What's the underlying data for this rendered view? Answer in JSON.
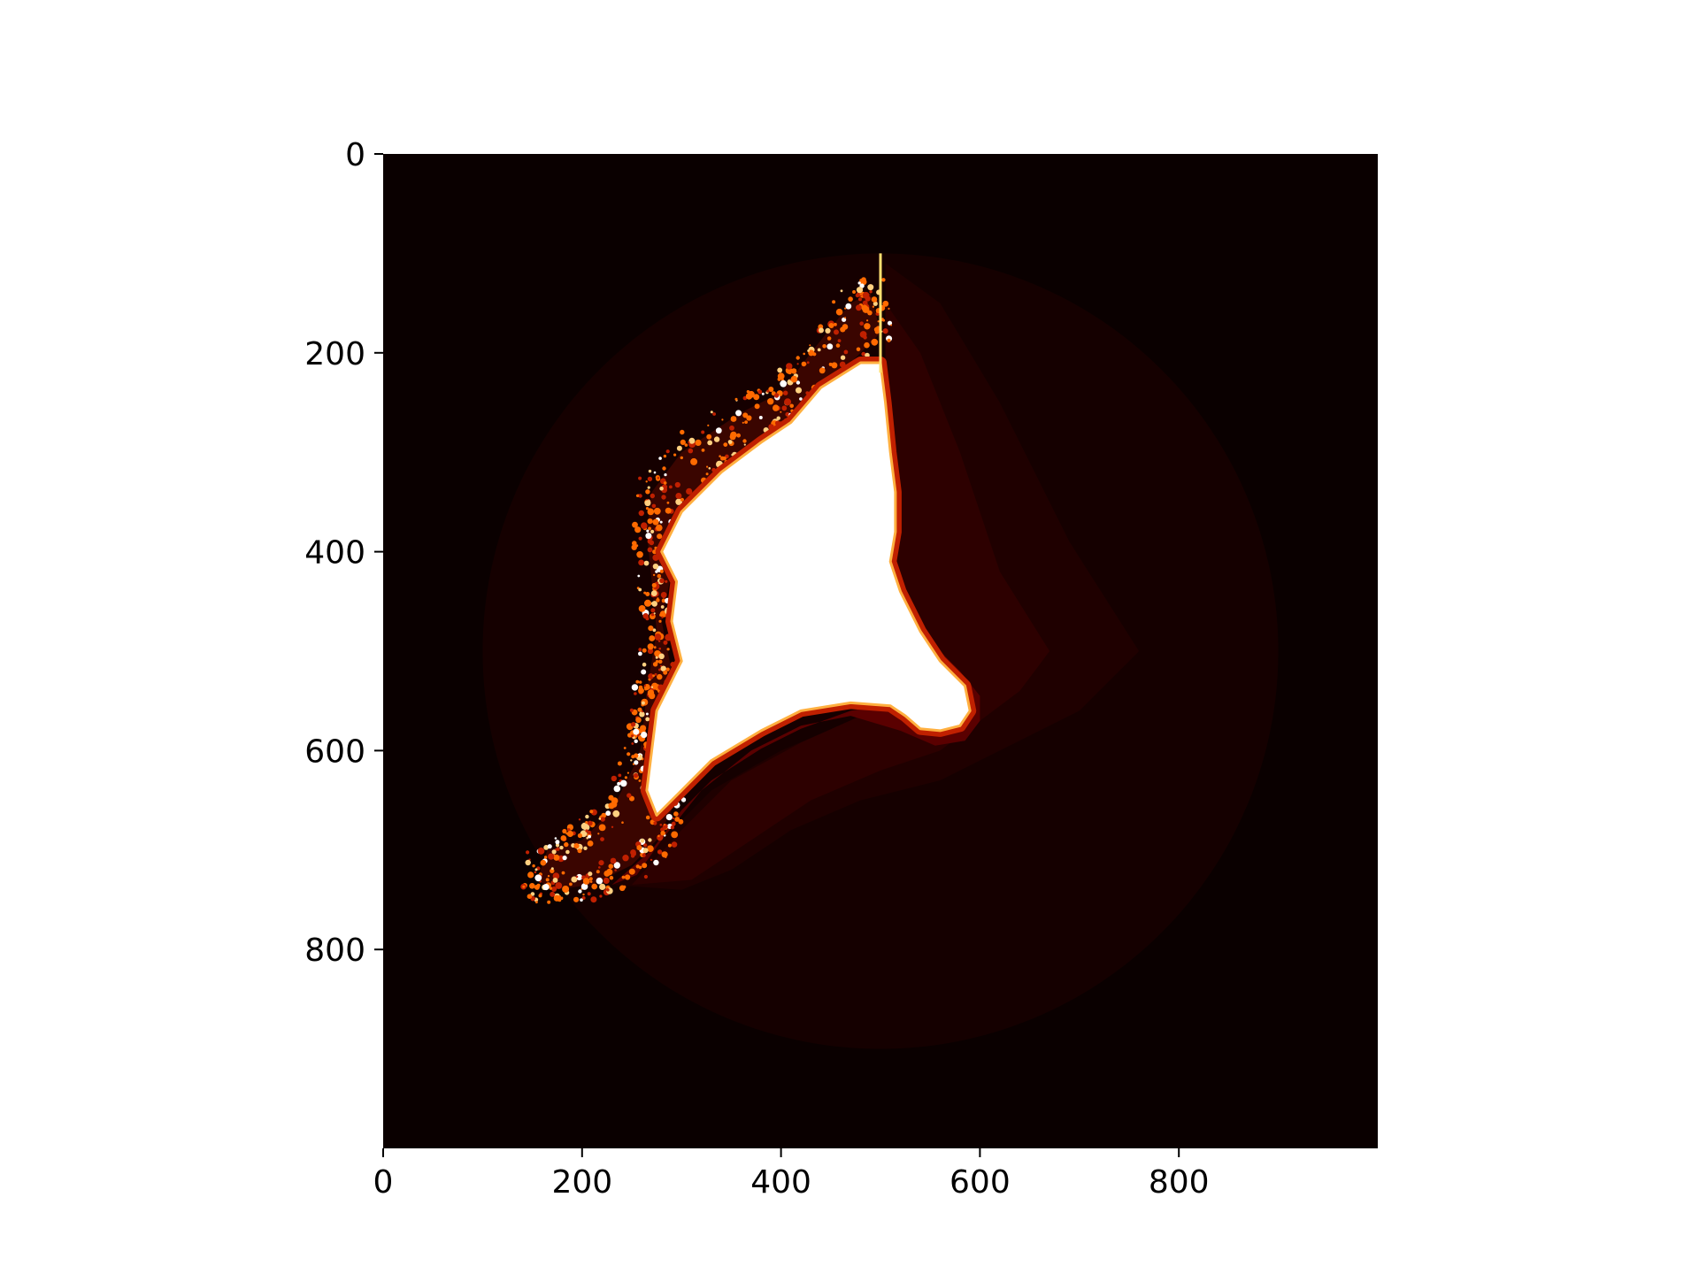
{
  "chart_data": {
    "type": "heatmap",
    "title": "",
    "xlabel": "",
    "ylabel": "",
    "xlim": [
      0,
      1000
    ],
    "ylim": [
      1000,
      0
    ],
    "y_axis_inverted": true,
    "x_ticks": [
      0,
      200,
      400,
      600,
      800
    ],
    "y_ticks": [
      0,
      200,
      400,
      600,
      800
    ],
    "x_tick_labels": [
      "0",
      "200",
      "400",
      "600",
      "800"
    ],
    "y_tick_labels": [
      "0",
      "200",
      "400",
      "600",
      "800"
    ],
    "colormap": "hot",
    "grid": false,
    "legend": "none",
    "colors": {
      "background": "#0a0000",
      "outer_disk": "#150000",
      "mid_band": "#1f0000",
      "inner_band": "#2d0000",
      "ridge": "#5a0000",
      "edge_glow": "#c02000",
      "speckle": "#ff6a00",
      "core": "#ffffff"
    },
    "features": {
      "disk_center": [
        500,
        500
      ],
      "disk_radius": 400,
      "vertical_streak_x": 500,
      "vertical_streak_y_range": [
        100,
        220
      ],
      "bright_core_outline": [
        [
          500,
          210
        ],
        [
          505,
          250
        ],
        [
          510,
          300
        ],
        [
          515,
          340
        ],
        [
          515,
          380
        ],
        [
          510,
          410
        ],
        [
          520,
          440
        ],
        [
          540,
          480
        ],
        [
          560,
          510
        ],
        [
          585,
          535
        ],
        [
          590,
          560
        ],
        [
          580,
          575
        ],
        [
          560,
          580
        ],
        [
          540,
          578
        ],
        [
          525,
          565
        ],
        [
          510,
          555
        ],
        [
          470,
          552
        ],
        [
          420,
          560
        ],
        [
          380,
          580
        ],
        [
          330,
          610
        ],
        [
          300,
          640
        ],
        [
          275,
          665
        ],
        [
          265,
          640
        ],
        [
          270,
          600
        ],
        [
          275,
          560
        ],
        [
          300,
          510
        ],
        [
          290,
          470
        ],
        [
          295,
          430
        ],
        [
          280,
          400
        ],
        [
          300,
          360
        ],
        [
          340,
          320
        ],
        [
          380,
          290
        ],
        [
          410,
          270
        ],
        [
          440,
          235
        ],
        [
          480,
          210
        ]
      ],
      "speckle_region": [
        [
          430,
          200
        ],
        [
          470,
          150
        ],
        [
          490,
          140
        ],
        [
          500,
          180
        ],
        [
          440,
          240
        ],
        [
          400,
          270
        ],
        [
          360,
          300
        ],
        [
          330,
          330
        ],
        [
          300,
          360
        ],
        [
          290,
          420
        ],
        [
          280,
          470
        ],
        [
          290,
          520
        ],
        [
          270,
          560
        ],
        [
          255,
          610
        ],
        [
          230,
          660
        ],
        [
          200,
          690
        ],
        [
          165,
          700
        ],
        [
          155,
          730
        ],
        [
          170,
          740
        ],
        [
          210,
          735
        ],
        [
          250,
          715
        ],
        [
          275,
          690
        ],
        [
          290,
          660
        ],
        [
          270,
          630
        ],
        [
          260,
          590
        ],
        [
          265,
          540
        ],
        [
          275,
          480
        ],
        [
          270,
          430
        ],
        [
          265,
          380
        ],
        [
          270,
          340
        ],
        [
          300,
          300
        ],
        [
          360,
          260
        ],
        [
          400,
          240
        ]
      ],
      "ridge_band": [
        [
          505,
          220
        ],
        [
          510,
          260
        ],
        [
          515,
          320
        ],
        [
          520,
          380
        ],
        [
          515,
          420
        ],
        [
          525,
          450
        ],
        [
          550,
          490
        ],
        [
          580,
          520
        ],
        [
          600,
          545
        ],
        [
          600,
          570
        ],
        [
          585,
          590
        ],
        [
          555,
          595
        ],
        [
          520,
          580
        ],
        [
          470,
          565
        ],
        [
          420,
          575
        ],
        [
          370,
          600
        ],
        [
          320,
          640
        ],
        [
          280,
          690
        ],
        [
          255,
          725
        ],
        [
          230,
          735
        ],
        [
          270,
          700
        ],
        [
          300,
          660
        ],
        [
          330,
          630
        ],
        [
          380,
          598
        ],
        [
          420,
          578
        ],
        [
          470,
          560
        ],
        [
          510,
          553
        ],
        [
          540,
          575
        ],
        [
          575,
          578
        ],
        [
          588,
          560
        ],
        [
          580,
          535
        ],
        [
          555,
          512
        ],
        [
          530,
          480
        ],
        [
          512,
          440
        ],
        [
          508,
          410
        ],
        [
          512,
          370
        ],
        [
          510,
          320
        ],
        [
          504,
          260
        ]
      ],
      "mid_band_outline": [
        [
          505,
          110
        ],
        [
          560,
          150
        ],
        [
          620,
          250
        ],
        [
          690,
          390
        ],
        [
          760,
          500
        ],
        [
          700,
          560
        ],
        [
          620,
          600
        ],
        [
          560,
          630
        ],
        [
          480,
          650
        ],
        [
          410,
          680
        ],
        [
          350,
          720
        ],
        [
          300,
          740
        ],
        [
          230,
          735
        ],
        [
          280,
          690
        ],
        [
          330,
          640
        ],
        [
          400,
          600
        ],
        [
          470,
          570
        ],
        [
          520,
          560
        ],
        [
          560,
          580
        ],
        [
          590,
          560
        ],
        [
          585,
          535
        ],
        [
          550,
          500
        ],
        [
          520,
          450
        ],
        [
          510,
          400
        ],
        [
          515,
          350
        ],
        [
          510,
          290
        ],
        [
          505,
          220
        ]
      ],
      "inner_band_outline": [
        [
          505,
          150
        ],
        [
          540,
          200
        ],
        [
          580,
          300
        ],
        [
          620,
          420
        ],
        [
          670,
          500
        ],
        [
          640,
          540
        ],
        [
          600,
          570
        ],
        [
          560,
          600
        ],
        [
          500,
          620
        ],
        [
          430,
          650
        ],
        [
          370,
          690
        ],
        [
          310,
          730
        ],
        [
          250,
          735
        ],
        [
          300,
          680
        ],
        [
          350,
          630
        ],
        [
          420,
          592
        ],
        [
          480,
          565
        ],
        [
          520,
          560
        ],
        [
          560,
          585
        ],
        [
          592,
          565
        ],
        [
          590,
          535
        ],
        [
          560,
          505
        ],
        [
          525,
          455
        ],
        [
          512,
          410
        ],
        [
          516,
          360
        ],
        [
          512,
          300
        ],
        [
          505,
          230
        ]
      ]
    }
  }
}
